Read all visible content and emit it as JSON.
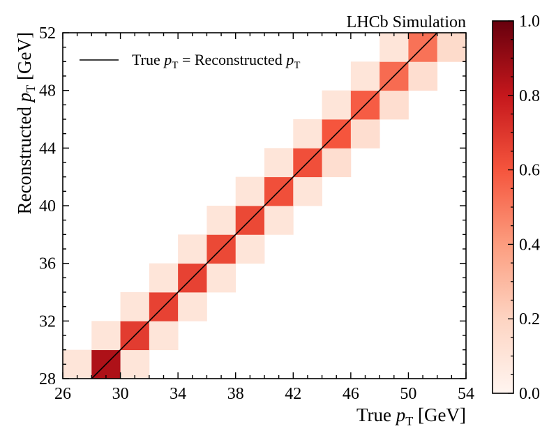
{
  "chart_data": {
    "type": "heatmap",
    "title": "LHCb Simulation",
    "xlabel": {
      "main": "True ",
      "var": "p",
      "sub": "T",
      "unit": " [GeV]"
    },
    "ylabel": {
      "main": "Reconstructed ",
      "var": "p",
      "sub": "T",
      "unit": " [GeV]"
    },
    "xlim": [
      26,
      54
    ],
    "ylim": [
      28,
      52
    ],
    "bin_width": 2,
    "xticks": [
      26,
      30,
      34,
      38,
      42,
      46,
      50,
      54
    ],
    "yticks": [
      28,
      32,
      36,
      40,
      44,
      48,
      52
    ],
    "xtick_labels": [
      "26",
      "30",
      "34",
      "38",
      "42",
      "46",
      "50",
      "54"
    ],
    "ytick_labels": [
      "28",
      "32",
      "36",
      "40",
      "44",
      "48",
      "52"
    ],
    "colorbar": {
      "min": 0.0,
      "max": 1.0,
      "ticks": [
        0.0,
        0.2,
        0.4,
        0.6,
        0.8,
        1.0
      ],
      "tick_labels": [
        "0.0",
        "0.2",
        "0.4",
        "0.6",
        "0.8",
        "1.0"
      ],
      "colormap": "Reds",
      "colors": [
        "#fff5f0",
        "#fdd4c2",
        "#fc9d7f",
        "#f5553d",
        "#c5171c",
        "#67000d"
      ]
    },
    "legend": {
      "position": "top-left",
      "label_prefix": "True ",
      "label_mid": " = Reconstructed ",
      "var": "p",
      "sub": "T"
    },
    "diagonal_line": {
      "from": [
        28,
        28
      ],
      "to": [
        52,
        52
      ],
      "color": "#000000"
    },
    "cells": [
      {
        "x": 26,
        "y": 28,
        "value": 0.1
      },
      {
        "x": 28,
        "y": 28,
        "value": 0.85
      },
      {
        "x": 30,
        "y": 28,
        "value": 0.1
      },
      {
        "x": 28,
        "y": 30,
        "value": 0.1
      },
      {
        "x": 30,
        "y": 30,
        "value": 0.68
      },
      {
        "x": 32,
        "y": 30,
        "value": 0.1
      },
      {
        "x": 30,
        "y": 32,
        "value": 0.1
      },
      {
        "x": 32,
        "y": 32,
        "value": 0.66
      },
      {
        "x": 34,
        "y": 32,
        "value": 0.1
      },
      {
        "x": 32,
        "y": 34,
        "value": 0.1
      },
      {
        "x": 34,
        "y": 34,
        "value": 0.66
      },
      {
        "x": 36,
        "y": 34,
        "value": 0.1
      },
      {
        "x": 34,
        "y": 36,
        "value": 0.1
      },
      {
        "x": 36,
        "y": 36,
        "value": 0.64
      },
      {
        "x": 38,
        "y": 36,
        "value": 0.1
      },
      {
        "x": 36,
        "y": 38,
        "value": 0.1
      },
      {
        "x": 38,
        "y": 38,
        "value": 0.64
      },
      {
        "x": 40,
        "y": 38,
        "value": 0.1
      },
      {
        "x": 38,
        "y": 40,
        "value": 0.1
      },
      {
        "x": 40,
        "y": 40,
        "value": 0.62
      },
      {
        "x": 42,
        "y": 40,
        "value": 0.1
      },
      {
        "x": 40,
        "y": 42,
        "value": 0.1
      },
      {
        "x": 42,
        "y": 42,
        "value": 0.62
      },
      {
        "x": 44,
        "y": 42,
        "value": 0.14
      },
      {
        "x": 42,
        "y": 44,
        "value": 0.1
      },
      {
        "x": 44,
        "y": 44,
        "value": 0.6
      },
      {
        "x": 46,
        "y": 44,
        "value": 0.14
      },
      {
        "x": 44,
        "y": 46,
        "value": 0.1
      },
      {
        "x": 46,
        "y": 46,
        "value": 0.58
      },
      {
        "x": 48,
        "y": 46,
        "value": 0.14
      },
      {
        "x": 46,
        "y": 48,
        "value": 0.1
      },
      {
        "x": 48,
        "y": 48,
        "value": 0.54
      },
      {
        "x": 50,
        "y": 48,
        "value": 0.14
      },
      {
        "x": 48,
        "y": 50,
        "value": 0.1
      },
      {
        "x": 50,
        "y": 50,
        "value": 0.52
      },
      {
        "x": 52,
        "y": 50,
        "value": 0.16
      }
    ]
  }
}
